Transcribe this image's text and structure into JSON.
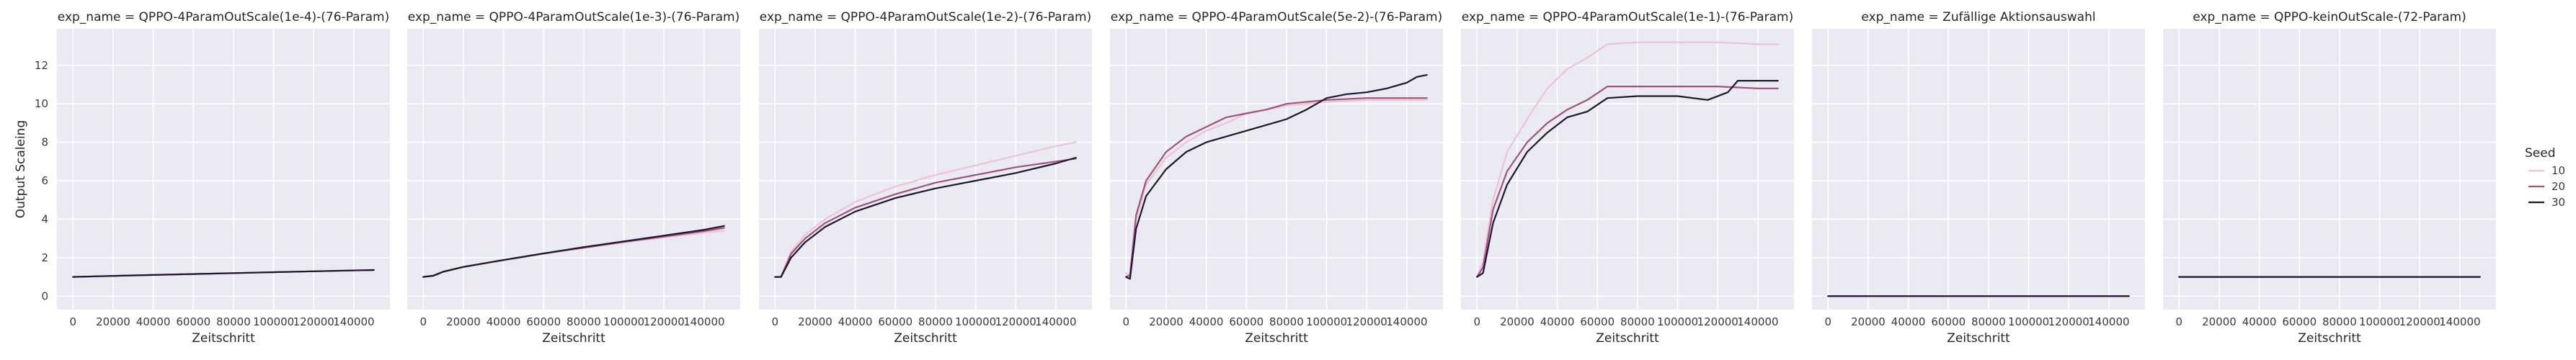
{
  "chart_data": {
    "type": "line",
    "figure": "faceted line chart (one panel per exp_name)",
    "ylabel": "Output Scaleing",
    "xlabel": "Zeitschritt",
    "shared_y": true,
    "ylim": [
      -0.7,
      13.9
    ],
    "yticks": [
      0,
      2,
      4,
      6,
      8,
      10,
      12
    ],
    "xlim": [
      -8000,
      158000
    ],
    "xticks": [
      0,
      20000,
      40000,
      60000,
      80000,
      100000,
      120000,
      140000
    ],
    "legend": {
      "title": "Seed",
      "placement": "right",
      "entries": [
        {
          "name": "10",
          "color": "#ecc2d4"
        },
        {
          "name": "20",
          "color": "#a4507e"
        },
        {
          "name": "30",
          "color": "#1c1631"
        }
      ]
    },
    "panels": [
      {
        "title": "exp_name = QPPO-4ParamOutScale(1e-4)-(76-Param)",
        "series": [
          {
            "name": "10",
            "points": [
              [
                0,
                1.0
              ],
              [
                30000,
                1.08
              ],
              [
                60000,
                1.15
              ],
              [
                90000,
                1.22
              ],
              [
                120000,
                1.29
              ],
              [
                150000,
                1.36
              ]
            ]
          },
          {
            "name": "20",
            "points": [
              [
                0,
                1.0
              ],
              [
                30000,
                1.08
              ],
              [
                60000,
                1.15
              ],
              [
                90000,
                1.22
              ],
              [
                120000,
                1.29
              ],
              [
                150000,
                1.36
              ]
            ]
          },
          {
            "name": "30",
            "points": [
              [
                0,
                1.0
              ],
              [
                30000,
                1.08
              ],
              [
                60000,
                1.15
              ],
              [
                90000,
                1.22
              ],
              [
                120000,
                1.29
              ],
              [
                150000,
                1.36
              ]
            ]
          }
        ]
      },
      {
        "title": "exp_name = QPPO-4ParamOutScale(1e-3)-(76-Param)",
        "series": [
          {
            "name": "10",
            "points": [
              [
                0,
                1.0
              ],
              [
                5000,
                1.05
              ],
              [
                10000,
                1.25
              ],
              [
                20000,
                1.5
              ],
              [
                40000,
                1.85
              ],
              [
                60000,
                2.2
              ],
              [
                80000,
                2.5
              ],
              [
                100000,
                2.8
              ],
              [
                120000,
                3.05
              ],
              [
                140000,
                3.3
              ],
              [
                150000,
                3.4
              ]
            ]
          },
          {
            "name": "20",
            "points": [
              [
                0,
                1.0
              ],
              [
                5000,
                1.07
              ],
              [
                10000,
                1.28
              ],
              [
                20000,
                1.52
              ],
              [
                40000,
                1.88
              ],
              [
                60000,
                2.22
              ],
              [
                80000,
                2.52
              ],
              [
                100000,
                2.82
              ],
              [
                120000,
                3.1
              ],
              [
                140000,
                3.38
              ],
              [
                150000,
                3.55
              ]
            ]
          },
          {
            "name": "30",
            "points": [
              [
                0,
                1.0
              ],
              [
                5000,
                1.06
              ],
              [
                10000,
                1.27
              ],
              [
                20000,
                1.52
              ],
              [
                40000,
                1.88
              ],
              [
                60000,
                2.22
              ],
              [
                80000,
                2.55
              ],
              [
                100000,
                2.85
              ],
              [
                120000,
                3.15
              ],
              [
                140000,
                3.45
              ],
              [
                150000,
                3.65
              ]
            ]
          }
        ]
      },
      {
        "title": "exp_name = QPPO-4ParamOutScale(1e-2)-(76-Param)",
        "series": [
          {
            "name": "10",
            "points": [
              [
                0,
                1.0
              ],
              [
                3000,
                1.0
              ],
              [
                8000,
                2.3
              ],
              [
                15000,
                3.2
              ],
              [
                25000,
                4.0
              ],
              [
                40000,
                4.9
              ],
              [
                60000,
                5.7
              ],
              [
                80000,
                6.3
              ],
              [
                100000,
                6.8
              ],
              [
                120000,
                7.3
              ],
              [
                140000,
                7.8
              ],
              [
                150000,
                8.0
              ]
            ]
          },
          {
            "name": "20",
            "points": [
              [
                0,
                1.0
              ],
              [
                3000,
                1.0
              ],
              [
                8000,
                2.2
              ],
              [
                15000,
                3.0
              ],
              [
                25000,
                3.8
              ],
              [
                40000,
                4.6
              ],
              [
                60000,
                5.3
              ],
              [
                80000,
                5.9
              ],
              [
                100000,
                6.3
              ],
              [
                120000,
                6.7
              ],
              [
                140000,
                7.0
              ],
              [
                150000,
                7.15
              ]
            ]
          },
          {
            "name": "30",
            "points": [
              [
                0,
                1.0
              ],
              [
                3000,
                1.0
              ],
              [
                8000,
                2.0
              ],
              [
                15000,
                2.8
              ],
              [
                25000,
                3.6
              ],
              [
                40000,
                4.4
              ],
              [
                60000,
                5.1
              ],
              [
                80000,
                5.6
              ],
              [
                100000,
                6.0
              ],
              [
                120000,
                6.4
              ],
              [
                140000,
                6.9
              ],
              [
                150000,
                7.2
              ]
            ]
          }
        ]
      },
      {
        "title": "exp_name = QPPO-4ParamOutScale(5e-2)-(76-Param)",
        "series": [
          {
            "name": "10",
            "points": [
              [
                0,
                1.2
              ],
              [
                2000,
                1.0
              ],
              [
                5000,
                4.0
              ],
              [
                10000,
                5.8
              ],
              [
                20000,
                7.2
              ],
              [
                30000,
                8.0
              ],
              [
                40000,
                8.6
              ],
              [
                50000,
                9.0
              ],
              [
                60000,
                9.5
              ],
              [
                70000,
                9.7
              ],
              [
                80000,
                9.9
              ],
              [
                100000,
                10.1
              ],
              [
                120000,
                10.2
              ],
              [
                140000,
                10.2
              ],
              [
                150000,
                10.2
              ]
            ]
          },
          {
            "name": "20",
            "points": [
              [
                0,
                1.0
              ],
              [
                2000,
                1.1
              ],
              [
                5000,
                4.2
              ],
              [
                10000,
                6.0
              ],
              [
                20000,
                7.5
              ],
              [
                30000,
                8.3
              ],
              [
                40000,
                8.8
              ],
              [
                50000,
                9.3
              ],
              [
                60000,
                9.5
              ],
              [
                70000,
                9.7
              ],
              [
                80000,
                10.0
              ],
              [
                100000,
                10.2
              ],
              [
                120000,
                10.3
              ],
              [
                140000,
                10.3
              ],
              [
                150000,
                10.3
              ]
            ]
          },
          {
            "name": "30",
            "points": [
              [
                0,
                1.0
              ],
              [
                2000,
                0.9
              ],
              [
                5000,
                3.5
              ],
              [
                10000,
                5.2
              ],
              [
                20000,
                6.6
              ],
              [
                30000,
                7.5
              ],
              [
                40000,
                8.0
              ],
              [
                50000,
                8.3
              ],
              [
                60000,
                8.6
              ],
              [
                70000,
                8.9
              ],
              [
                80000,
                9.2
              ],
              [
                90000,
                9.7
              ],
              [
                100000,
                10.3
              ],
              [
                110000,
                10.5
              ],
              [
                120000,
                10.6
              ],
              [
                130000,
                10.8
              ],
              [
                140000,
                11.1
              ],
              [
                145000,
                11.4
              ],
              [
                150000,
                11.5
              ]
            ]
          }
        ]
      },
      {
        "title": "exp_name = QPPO-4ParamOutScale(1e-1)-(76-Param)",
        "series": [
          {
            "name": "10",
            "points": [
              [
                0,
                1.0
              ],
              [
                3000,
                1.8
              ],
              [
                8000,
                5.0
              ],
              [
                15000,
                7.5
              ],
              [
                25000,
                9.2
              ],
              [
                35000,
                10.8
              ],
              [
                45000,
                11.8
              ],
              [
                55000,
                12.4
              ],
              [
                65000,
                13.1
              ],
              [
                80000,
                13.2
              ],
              [
                100000,
                13.2
              ],
              [
                120000,
                13.2
              ],
              [
                140000,
                13.1
              ],
              [
                150000,
                13.1
              ]
            ]
          },
          {
            "name": "20",
            "points": [
              [
                0,
                1.0
              ],
              [
                3000,
                1.5
              ],
              [
                8000,
                4.5
              ],
              [
                15000,
                6.5
              ],
              [
                25000,
                8.0
              ],
              [
                35000,
                9.0
              ],
              [
                45000,
                9.7
              ],
              [
                55000,
                10.2
              ],
              [
                65000,
                10.9
              ],
              [
                80000,
                10.9
              ],
              [
                100000,
                10.9
              ],
              [
                120000,
                10.9
              ],
              [
                140000,
                10.8
              ],
              [
                150000,
                10.8
              ]
            ]
          },
          {
            "name": "30",
            "points": [
              [
                0,
                1.0
              ],
              [
                3000,
                1.2
              ],
              [
                8000,
                3.8
              ],
              [
                15000,
                5.8
              ],
              [
                25000,
                7.5
              ],
              [
                35000,
                8.5
              ],
              [
                45000,
                9.3
              ],
              [
                55000,
                9.6
              ],
              [
                65000,
                10.3
              ],
              [
                80000,
                10.4
              ],
              [
                100000,
                10.4
              ],
              [
                115000,
                10.2
              ],
              [
                125000,
                10.6
              ],
              [
                130000,
                11.2
              ],
              [
                140000,
                11.2
              ],
              [
                150000,
                11.2
              ]
            ]
          }
        ]
      },
      {
        "title": "exp_name = Zufällige Aktionsauswahl",
        "series": [
          {
            "name": "10",
            "points": [
              [
                0,
                0.0
              ],
              [
                150000,
                0.0
              ]
            ]
          },
          {
            "name": "20",
            "points": [
              [
                0,
                0.0
              ],
              [
                150000,
                0.0
              ]
            ]
          },
          {
            "name": "30",
            "points": [
              [
                0,
                0.0
              ],
              [
                150000,
                0.0
              ]
            ]
          }
        ]
      },
      {
        "title": "exp_name = QPPO-keinOutScale-(72-Param)",
        "series": [
          {
            "name": "10",
            "points": [
              [
                0,
                1.0
              ],
              [
                150000,
                1.0
              ]
            ]
          },
          {
            "name": "20",
            "points": [
              [
                0,
                1.0
              ],
              [
                150000,
                1.0
              ]
            ]
          },
          {
            "name": "30",
            "points": [
              [
                0,
                1.0
              ],
              [
                150000,
                1.0
              ]
            ]
          }
        ]
      }
    ]
  }
}
